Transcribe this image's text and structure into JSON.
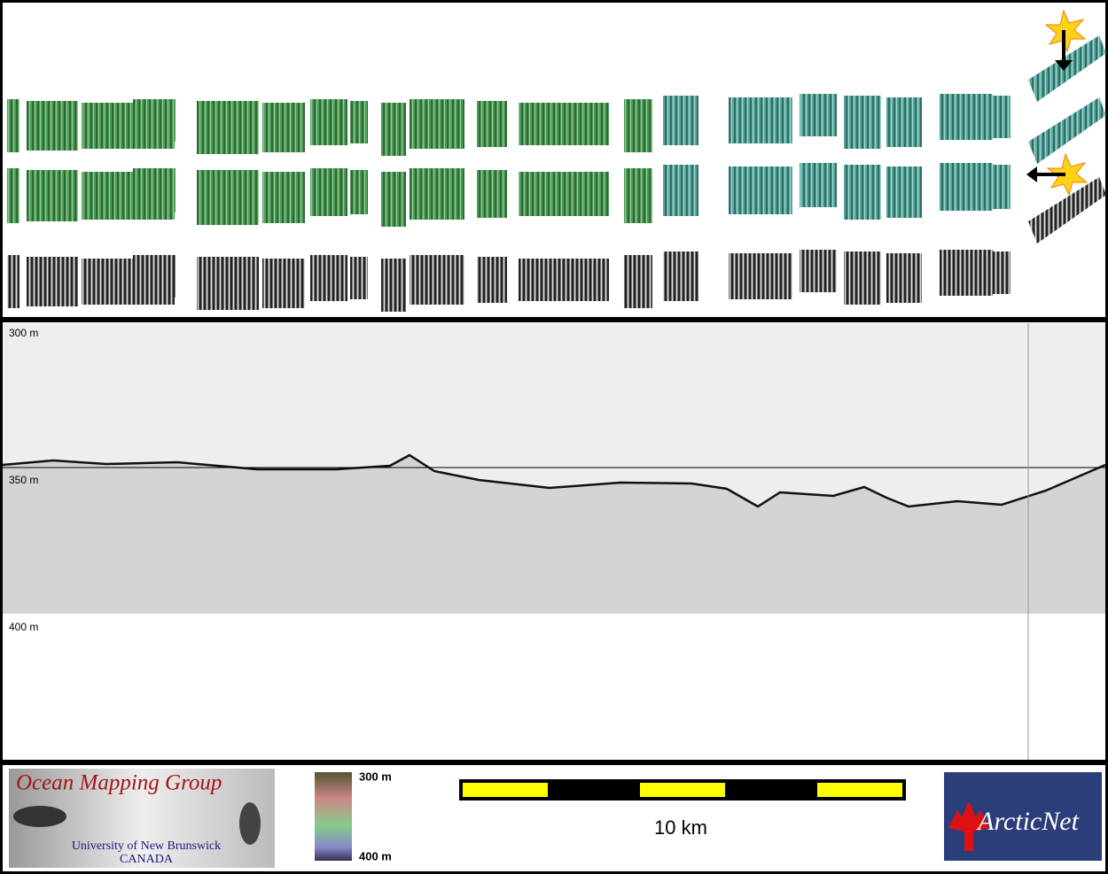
{
  "profile": {
    "depth_labels": [
      "300 m",
      "350 m",
      "400 m"
    ]
  },
  "footer": {
    "logo_left": {
      "title": "Ocean Mapping Group",
      "line1": "University of New Brunswick",
      "line2": "CANADA"
    },
    "colorbar": {
      "top": "300 m",
      "bottom": "400 m"
    },
    "scale_bar": {
      "label": "10 km"
    },
    "logo_right": {
      "label": "ArcticNet"
    }
  }
}
